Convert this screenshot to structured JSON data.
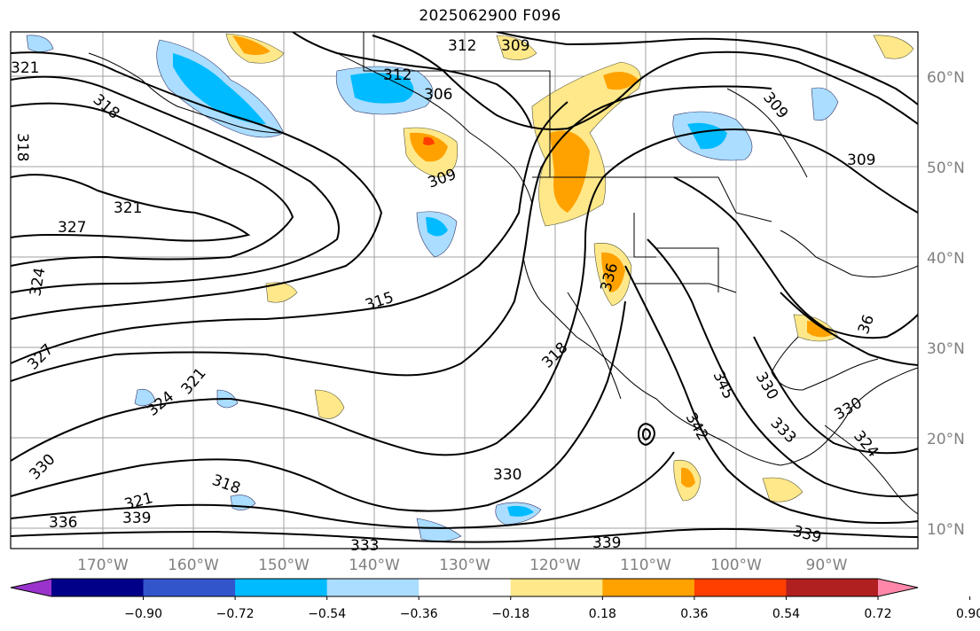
{
  "title": "2025062900 F096",
  "latitude_labels": [
    "60°N",
    "50°N",
    "40°N",
    "30°N",
    "20°N",
    "10°N"
  ],
  "longitude_labels": [
    "170°W",
    "160°W",
    "150°W",
    "140°W",
    "130°W",
    "120°W",
    "110°W",
    "100°W",
    "90°W"
  ],
  "colorbar": {
    "colors": [
      "#9a33cc",
      "#000088",
      "#3355cc",
      "#00bbff",
      "#aaddff",
      "#ffffff",
      "#ffe88a",
      "#ffa200",
      "#ff3f00",
      "#b02020",
      "#ff88aa"
    ],
    "labels": [
      "−0.90",
      "−0.72",
      "−0.54",
      "−0.36",
      "−0.18",
      "0.18",
      "0.36",
      "0.54",
      "0.72",
      "0.90"
    ]
  },
  "contour_labels": [
    "321",
    "318",
    "318",
    "312",
    "309",
    "312",
    "306",
    "309",
    "309",
    "309",
    "321",
    "327",
    "324",
    "315",
    "327",
    "321",
    "324",
    "330",
    "318",
    "321",
    "339",
    "336",
    "333",
    "330",
    "339",
    "339",
    "318",
    "336",
    "345",
    "342",
    "330",
    "333",
    "330",
    "324",
    "36"
  ]
}
